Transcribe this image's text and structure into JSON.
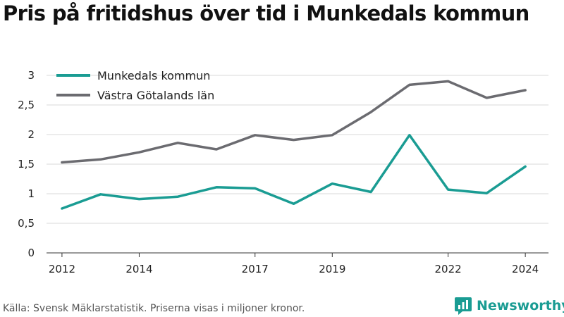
{
  "header": {
    "title": "Pris på fritidshus över tid i Munkedals kommun"
  },
  "footer": {
    "source": "Källa: Svensk Mäklarstatistik. Priserna visas i miljoner kronor.",
    "brand": "Newsworthy"
  },
  "colors": {
    "accent": "#1a9c93",
    "secondary": "#6b6b70",
    "grid": "#d9d9d9"
  },
  "chart_data": {
    "type": "line",
    "title": "Pris på fritidshus över tid i Munkedals kommun",
    "xlabel": "",
    "ylabel": "",
    "xlim": [
      2011.6,
      2024.6
    ],
    "ylim": [
      0,
      3
    ],
    "x": [
      2012,
      2013,
      2014,
      2015,
      2016,
      2017,
      2018,
      2019,
      2020,
      2021,
      2022,
      2023,
      2024
    ],
    "x_ticks": [
      2012,
      2014,
      2017,
      2019,
      2022,
      2024
    ],
    "y_ticks": [
      0,
      0.5,
      1,
      1.5,
      2,
      2.5,
      3
    ],
    "y_tick_labels": [
      "0",
      "0,5",
      "1",
      "1,5",
      "2",
      "2,5",
      "3"
    ],
    "grid": true,
    "legend_position": "top-left",
    "series": [
      {
        "name": "Munkedals kommun",
        "color": "#1a9c93",
        "values": [
          0.75,
          0.99,
          0.91,
          0.95,
          1.11,
          1.09,
          0.83,
          1.17,
          1.03,
          1.99,
          1.07,
          1.01,
          1.46
        ]
      },
      {
        "name": "Västra Götalands län",
        "color": "#6b6b70",
        "values": [
          1.53,
          1.58,
          1.7,
          1.86,
          1.75,
          1.99,
          1.91,
          1.99,
          2.38,
          2.84,
          2.9,
          2.62,
          2.75
        ]
      }
    ]
  }
}
